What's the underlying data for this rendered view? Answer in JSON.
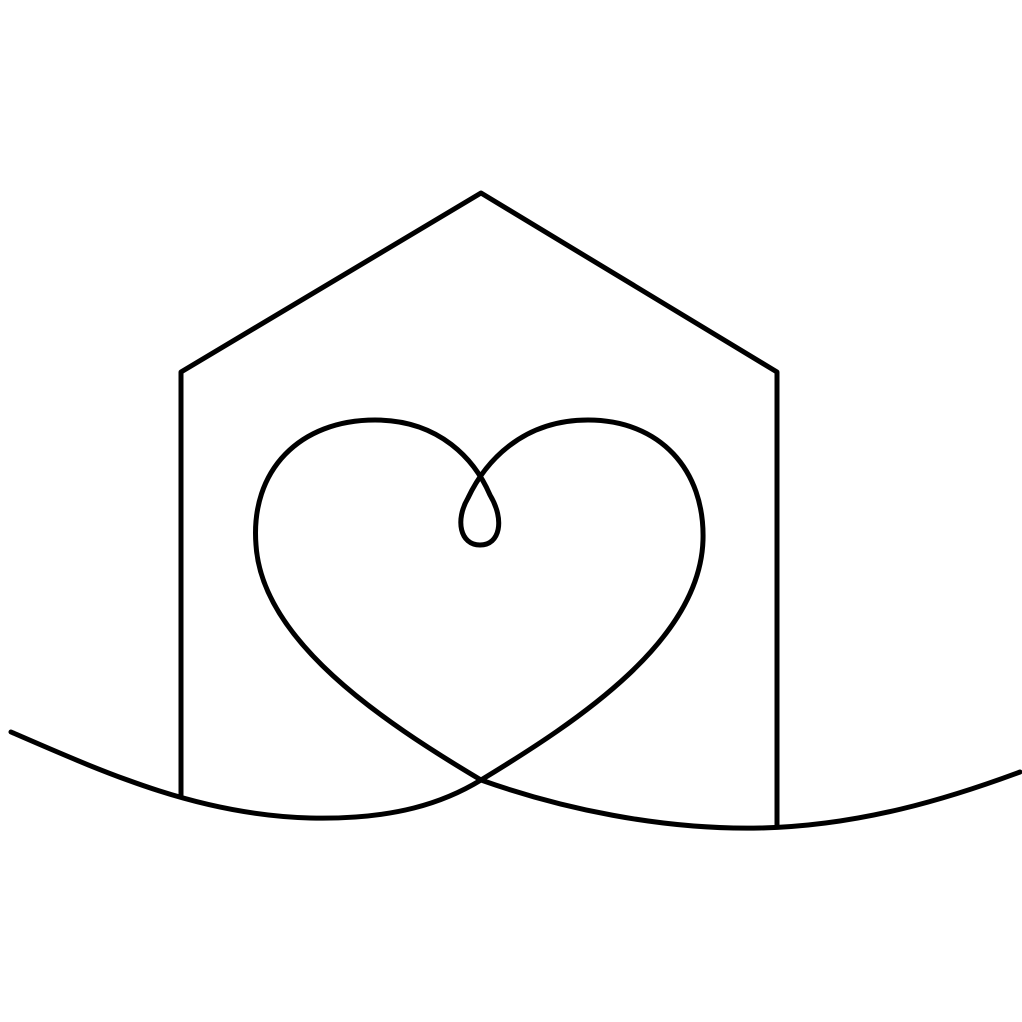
{
  "artwork": {
    "style": "single continuous line drawing",
    "subject": [
      "house-outline",
      "heart-with-loop",
      "ground-wave-line"
    ],
    "colors": {
      "background": "#ffffff",
      "stroke": "#000000"
    }
  }
}
